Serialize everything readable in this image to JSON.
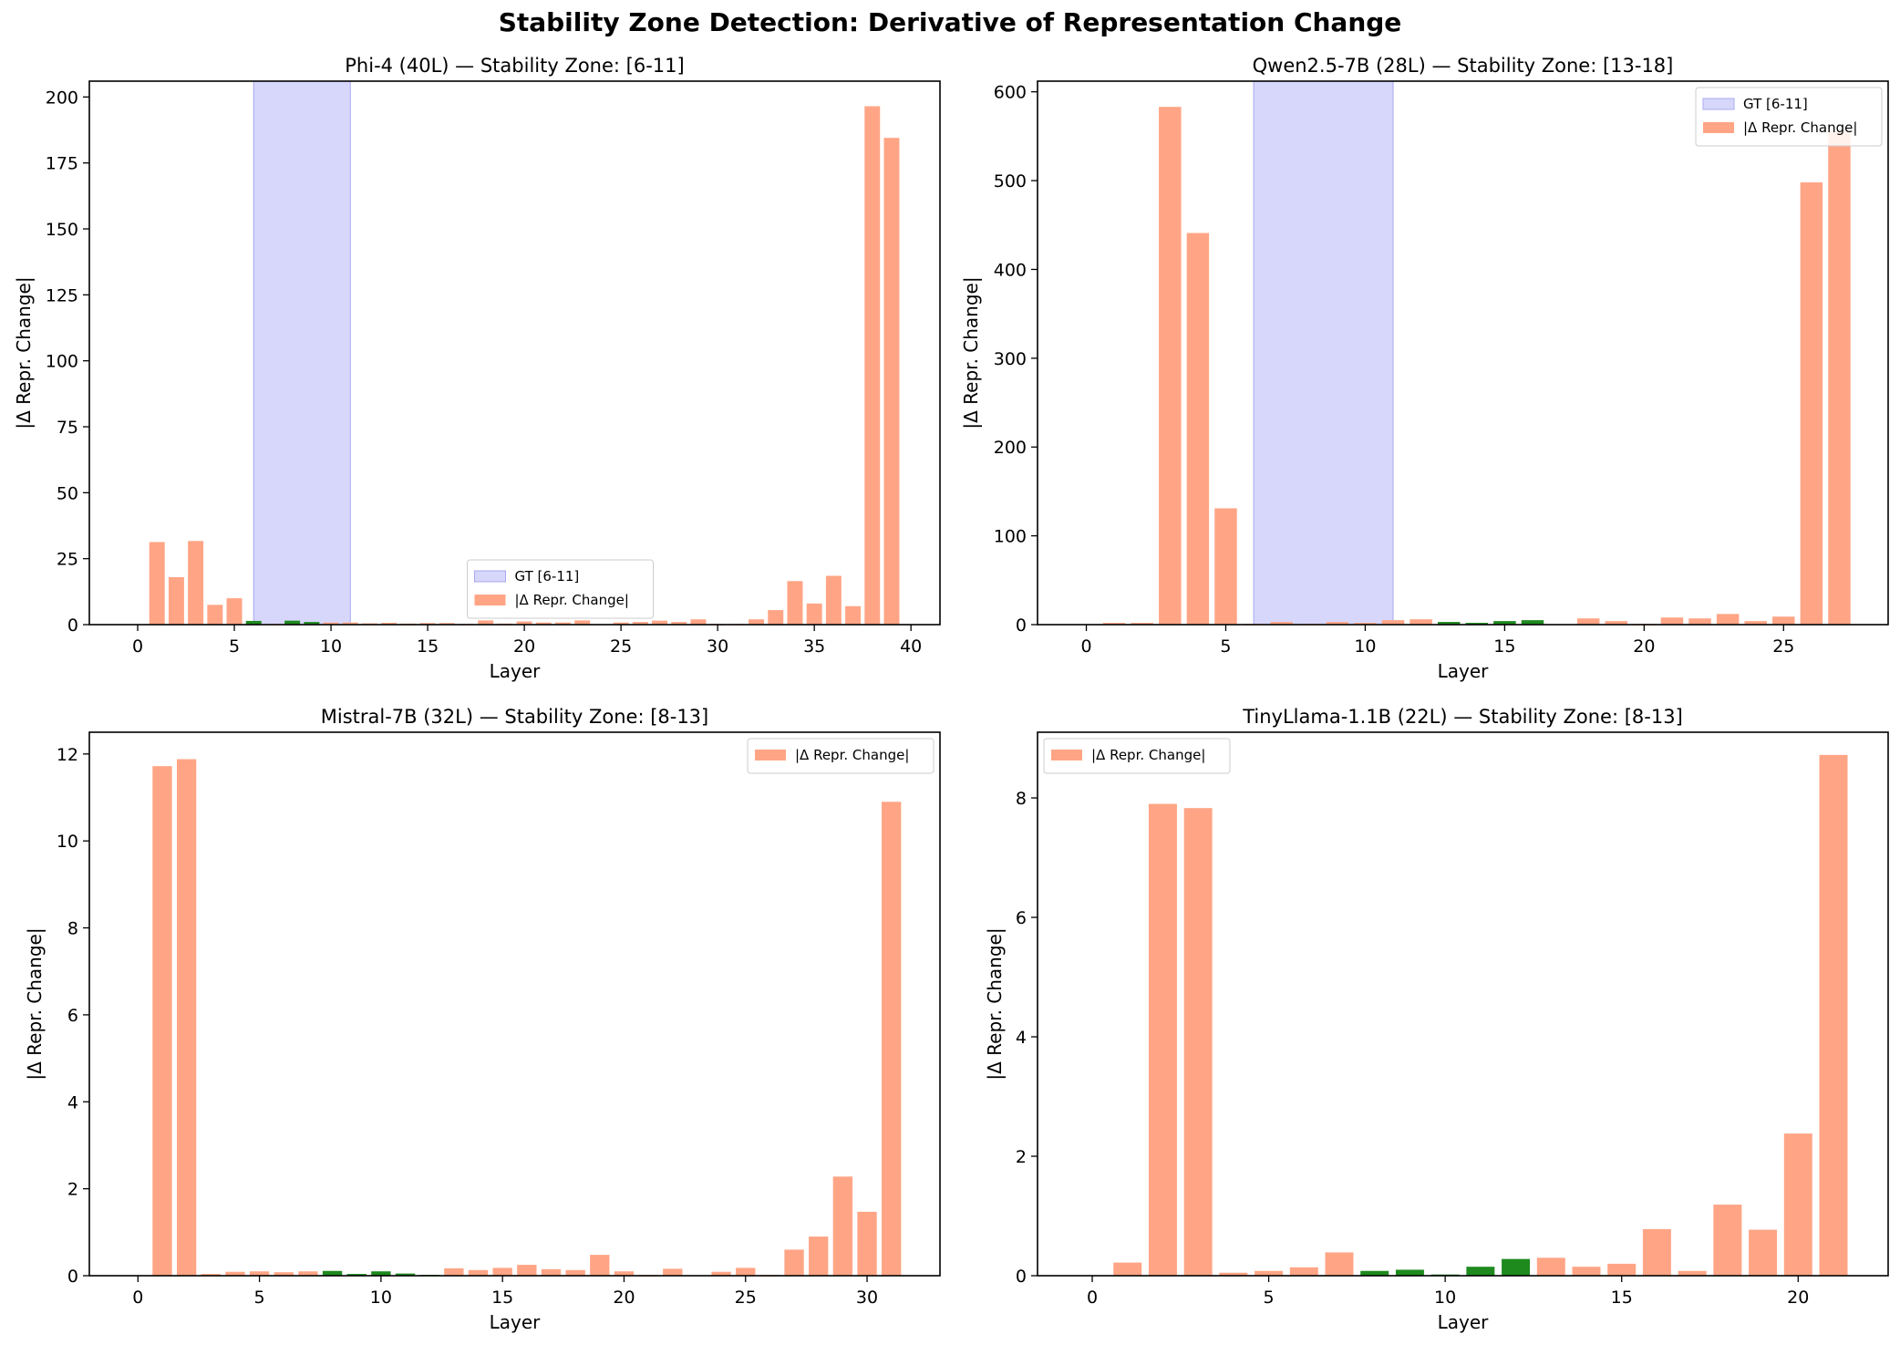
{
  "figure_title": "Stability Zone Detection: Derivative of Representation Change",
  "colors": {
    "bar_default": "#ffa585",
    "bar_stable": "#1e8a1e",
    "gt_span": "#d7d7fb",
    "gt_edge": "#a8a8f0"
  },
  "chart_data": [
    {
      "type": "bar",
      "title": "Phi-4 (40L) — Stability Zone: [6-11]",
      "xlabel": "Layer",
      "ylabel": "|Δ Repr. Change|",
      "xlim": [
        -2.5,
        41.5
      ],
      "ylim": [
        0,
        206
      ],
      "xticks": [
        0,
        5,
        10,
        15,
        20,
        25,
        30,
        35,
        40
      ],
      "yticks": [
        0,
        25,
        50,
        75,
        100,
        125,
        150,
        175,
        200
      ],
      "gt_span": [
        6,
        11
      ],
      "stable_layers": [
        6,
        8,
        9
      ],
      "legend": {
        "location": "lower-center",
        "entries": [
          "GT [6-11]",
          "|Δ Repr. Change|"
        ]
      },
      "x": [
        0,
        1,
        2,
        3,
        4,
        5,
        6,
        7,
        8,
        9,
        10,
        11,
        12,
        13,
        14,
        15,
        16,
        17,
        18,
        19,
        20,
        21,
        22,
        23,
        24,
        25,
        26,
        27,
        28,
        29,
        30,
        31,
        32,
        33,
        34,
        35,
        36,
        37,
        38,
        39
      ],
      "values": [
        0,
        31.3,
        18,
        31.7,
        7.5,
        10,
        1.4,
        0.3,
        1.5,
        1,
        0.8,
        0.8,
        0.5,
        0.7,
        0.4,
        0.6,
        0.6,
        0.3,
        1.6,
        0.4,
        1.2,
        0.8,
        0.8,
        1.6,
        0.2,
        0.8,
        1,
        1.5,
        1,
        2,
        0.3,
        0.3,
        2,
        5.5,
        16.5,
        8,
        18.5,
        7,
        196.5,
        184.5
      ]
    },
    {
      "type": "bar",
      "title": "Qwen2.5-7B (28L) — Stability Zone: [13-18]",
      "xlabel": "Layer",
      "ylabel": "|Δ Repr. Change|",
      "xlim": [
        -1.75,
        28.75
      ],
      "ylim": [
        0,
        612
      ],
      "xticks": [
        0,
        5,
        10,
        15,
        20,
        25
      ],
      "yticks": [
        0,
        100,
        200,
        300,
        400,
        500,
        600
      ],
      "gt_span": [
        6,
        11
      ],
      "stable_layers": [
        13,
        14,
        15,
        16
      ],
      "legend": {
        "location": "top-right",
        "entries": [
          "GT [6-11]",
          "|Δ Repr. Change|"
        ]
      },
      "x": [
        0,
        1,
        2,
        3,
        4,
        5,
        6,
        7,
        8,
        9,
        10,
        11,
        12,
        13,
        14,
        15,
        16,
        17,
        18,
        19,
        20,
        21,
        22,
        23,
        24,
        25,
        26,
        27
      ],
      "values": [
        0,
        2,
        2,
        583,
        441,
        131,
        1,
        3,
        1,
        3,
        2,
        5,
        6,
        3,
        2,
        4,
        5,
        0.5,
        7,
        4,
        1,
        8,
        7,
        12,
        4,
        9,
        498,
        556
      ]
    },
    {
      "type": "bar",
      "title": "Mistral-7B (32L) — Stability Zone: [8-13]",
      "xlabel": "Layer",
      "ylabel": "|Δ Repr. Change|",
      "xlim": [
        -2.0,
        33.0
      ],
      "ylim": [
        0,
        12.5
      ],
      "xticks": [
        0,
        5,
        10,
        15,
        20,
        25,
        30
      ],
      "yticks": [
        0,
        2,
        4,
        6,
        8,
        10,
        12
      ],
      "gt_span": null,
      "stable_layers": [
        8,
        9,
        10,
        11,
        12
      ],
      "legend": {
        "location": "top-right",
        "entries": [
          "|Δ Repr. Change|"
        ]
      },
      "x": [
        0,
        1,
        2,
        3,
        4,
        5,
        6,
        7,
        8,
        9,
        10,
        11,
        12,
        13,
        14,
        15,
        16,
        17,
        18,
        19,
        20,
        21,
        22,
        23,
        24,
        25,
        26,
        27,
        28,
        29,
        30,
        31
      ],
      "values": [
        0,
        11.72,
        11.88,
        0.04,
        0.09,
        0.1,
        0.08,
        0.1,
        0.11,
        0.04,
        0.1,
        0.05,
        0.02,
        0.17,
        0.13,
        0.18,
        0.25,
        0.15,
        0.13,
        0.48,
        0.1,
        0.02,
        0.16,
        0.01,
        0.09,
        0.18,
        0.02,
        0.6,
        0.9,
        2.28,
        1.47,
        10.9
      ]
    },
    {
      "type": "bar",
      "title": "TinyLlama-1.1B (22L) — Stability Zone: [8-13]",
      "xlabel": "Layer",
      "ylabel": "|Δ Repr. Change|",
      "xlim": [
        -1.55,
        22.55
      ],
      "ylim": [
        0,
        9.1
      ],
      "xticks": [
        0,
        5,
        10,
        15,
        20
      ],
      "yticks": [
        0,
        2,
        4,
        6,
        8
      ],
      "gt_span": null,
      "stable_layers": [
        8,
        9,
        10,
        11,
        12
      ],
      "legend": {
        "location": "top-left",
        "entries": [
          "|Δ Repr. Change|"
        ]
      },
      "x": [
        0,
        1,
        2,
        3,
        4,
        5,
        6,
        7,
        8,
        9,
        10,
        11,
        12,
        13,
        14,
        15,
        16,
        17,
        18,
        19,
        20,
        21
      ],
      "values": [
        0,
        0.22,
        7.9,
        7.83,
        0.05,
        0.08,
        0.14,
        0.39,
        0.08,
        0.1,
        0.02,
        0.15,
        0.28,
        0.3,
        0.15,
        0.2,
        0.78,
        0.08,
        1.19,
        0.77,
        2.38,
        8.72
      ]
    }
  ]
}
